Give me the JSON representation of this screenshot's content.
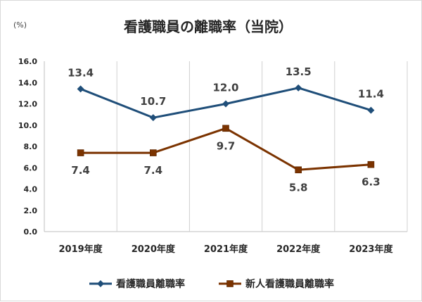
{
  "chart_data": {
    "type": "line",
    "title": "看護職員の離職率（当院）",
    "ylabel": "(%)",
    "categories": [
      "2019年度",
      "2020年度",
      "2021年度",
      "2022年度",
      "2023年度"
    ],
    "ylim": [
      0,
      16
    ],
    "yticks": [
      "0.0",
      "2.0",
      "4.0",
      "6.0",
      "8.0",
      "10.0",
      "12.0",
      "14.0",
      "16.0"
    ],
    "grid": "vertical",
    "legend": "bottom",
    "series": [
      {
        "name": "看護職員離職率",
        "values": [
          13.4,
          10.7,
          12.0,
          13.5,
          11.4
        ],
        "labels": [
          "13.4",
          "10.7",
          "12.0",
          "13.5",
          "11.4"
        ],
        "color": "#1f4e79",
        "marker": "diamond"
      },
      {
        "name": "新人看護職員離職率",
        "values": [
          7.4,
          7.4,
          9.7,
          5.8,
          6.3
        ],
        "labels": [
          "7.4",
          "7.4",
          "9.7",
          "5.8",
          "6.3"
        ],
        "color": "#7b3300",
        "marker": "square"
      }
    ]
  }
}
